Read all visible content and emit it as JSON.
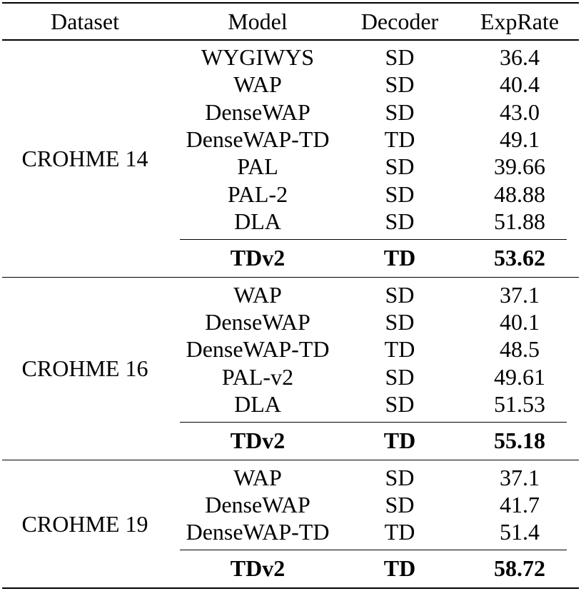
{
  "header": {
    "dataset": "Dataset",
    "model": "Model",
    "decoder": "Decoder",
    "exprate": "ExpRate"
  },
  "sections": [
    {
      "dataset": "CROHME 14",
      "rows": [
        {
          "model": "WYGIWYS",
          "decoder": "SD",
          "exprate": "36.4"
        },
        {
          "model": "WAP",
          "decoder": "SD",
          "exprate": "40.4"
        },
        {
          "model": "DenseWAP",
          "decoder": "SD",
          "exprate": "43.0"
        },
        {
          "model": "DenseWAP-TD",
          "decoder": "TD",
          "exprate": "49.1"
        },
        {
          "model": "PAL",
          "decoder": "SD",
          "exprate": "39.66"
        },
        {
          "model": "PAL-2",
          "decoder": "SD",
          "exprate": "48.88"
        },
        {
          "model": "DLA",
          "decoder": "SD",
          "exprate": "51.88"
        }
      ],
      "best": {
        "model": "TDv2",
        "decoder": "TD",
        "exprate": "53.62"
      }
    },
    {
      "dataset": "CROHME 16",
      "rows": [
        {
          "model": "WAP",
          "decoder": "SD",
          "exprate": "37.1"
        },
        {
          "model": "DenseWAP",
          "decoder": "SD",
          "exprate": "40.1"
        },
        {
          "model": "DenseWAP-TD",
          "decoder": "TD",
          "exprate": "48.5"
        },
        {
          "model": "PAL-v2",
          "decoder": "SD",
          "exprate": "49.61"
        },
        {
          "model": "DLA",
          "decoder": "SD",
          "exprate": "51.53"
        }
      ],
      "best": {
        "model": "TDv2",
        "decoder": "TD",
        "exprate": "55.18"
      }
    },
    {
      "dataset": "CROHME 19",
      "rows": [
        {
          "model": "WAP",
          "decoder": "SD",
          "exprate": "37.1"
        },
        {
          "model": "DenseWAP",
          "decoder": "SD",
          "exprate": "41.7"
        },
        {
          "model": "DenseWAP-TD",
          "decoder": "TD",
          "exprate": "51.4"
        }
      ],
      "best": {
        "model": "TDv2",
        "decoder": "TD",
        "exprate": "58.72"
      }
    }
  ]
}
